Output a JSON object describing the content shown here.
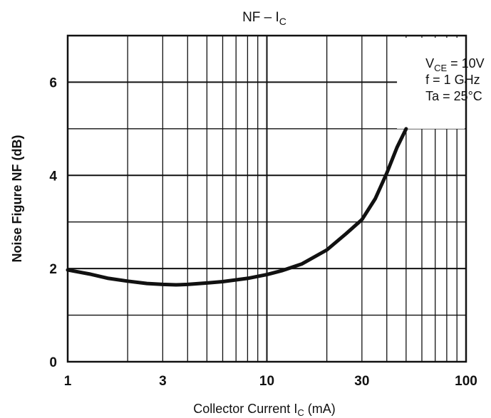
{
  "chart_data": {
    "type": "line",
    "title": "NF – I",
    "title_sub": "C",
    "xlabel": "Collector Current I",
    "xlabel_sub": "C",
    "xlabel_unit": " (mA)",
    "ylabel": "Noise Figure NF (dB)",
    "x_scale": "log",
    "xlim": [
      1,
      100
    ],
    "ylim": [
      0,
      7
    ],
    "grid": true,
    "x_ticks": [
      {
        "value": 1,
        "label": "1"
      },
      {
        "value": 3,
        "label": "3"
      },
      {
        "value": 10,
        "label": "10"
      },
      {
        "value": 30,
        "label": "30"
      },
      {
        "value": 100,
        "label": "100"
      }
    ],
    "y_ticks": [
      {
        "value": 0,
        "label": "0"
      },
      {
        "value": 2,
        "label": "2"
      },
      {
        "value": 4,
        "label": "4"
      },
      {
        "value": 6,
        "label": "6"
      }
    ],
    "annotation": {
      "placement": "top-right",
      "lines": [
        {
          "text": "V",
          "sub": "CE",
          "rest": " = 10V"
        },
        {
          "text": "f = 1 GHz",
          "sub": "",
          "rest": ""
        },
        {
          "text": "Ta = 25°C",
          "sub": "",
          "rest": ""
        }
      ]
    },
    "series": [
      {
        "points": [
          [
            1.0,
            1.97
          ],
          [
            1.3,
            1.88
          ],
          [
            1.6,
            1.79
          ],
          [
            2.0,
            1.73
          ],
          [
            2.5,
            1.68
          ],
          [
            3.0,
            1.66
          ],
          [
            3.5,
            1.65
          ],
          [
            4.0,
            1.66
          ],
          [
            5.0,
            1.69
          ],
          [
            6.0,
            1.72
          ],
          [
            8.0,
            1.79
          ],
          [
            10.0,
            1.87
          ],
          [
            12.0,
            1.96
          ],
          [
            15.0,
            2.1
          ],
          [
            20.0,
            2.4
          ],
          [
            25.0,
            2.75
          ],
          [
            30.0,
            3.05
          ],
          [
            35.0,
            3.5
          ],
          [
            40.0,
            4.05
          ],
          [
            45.0,
            4.6
          ],
          [
            50.0,
            5.0
          ]
        ]
      }
    ]
  }
}
